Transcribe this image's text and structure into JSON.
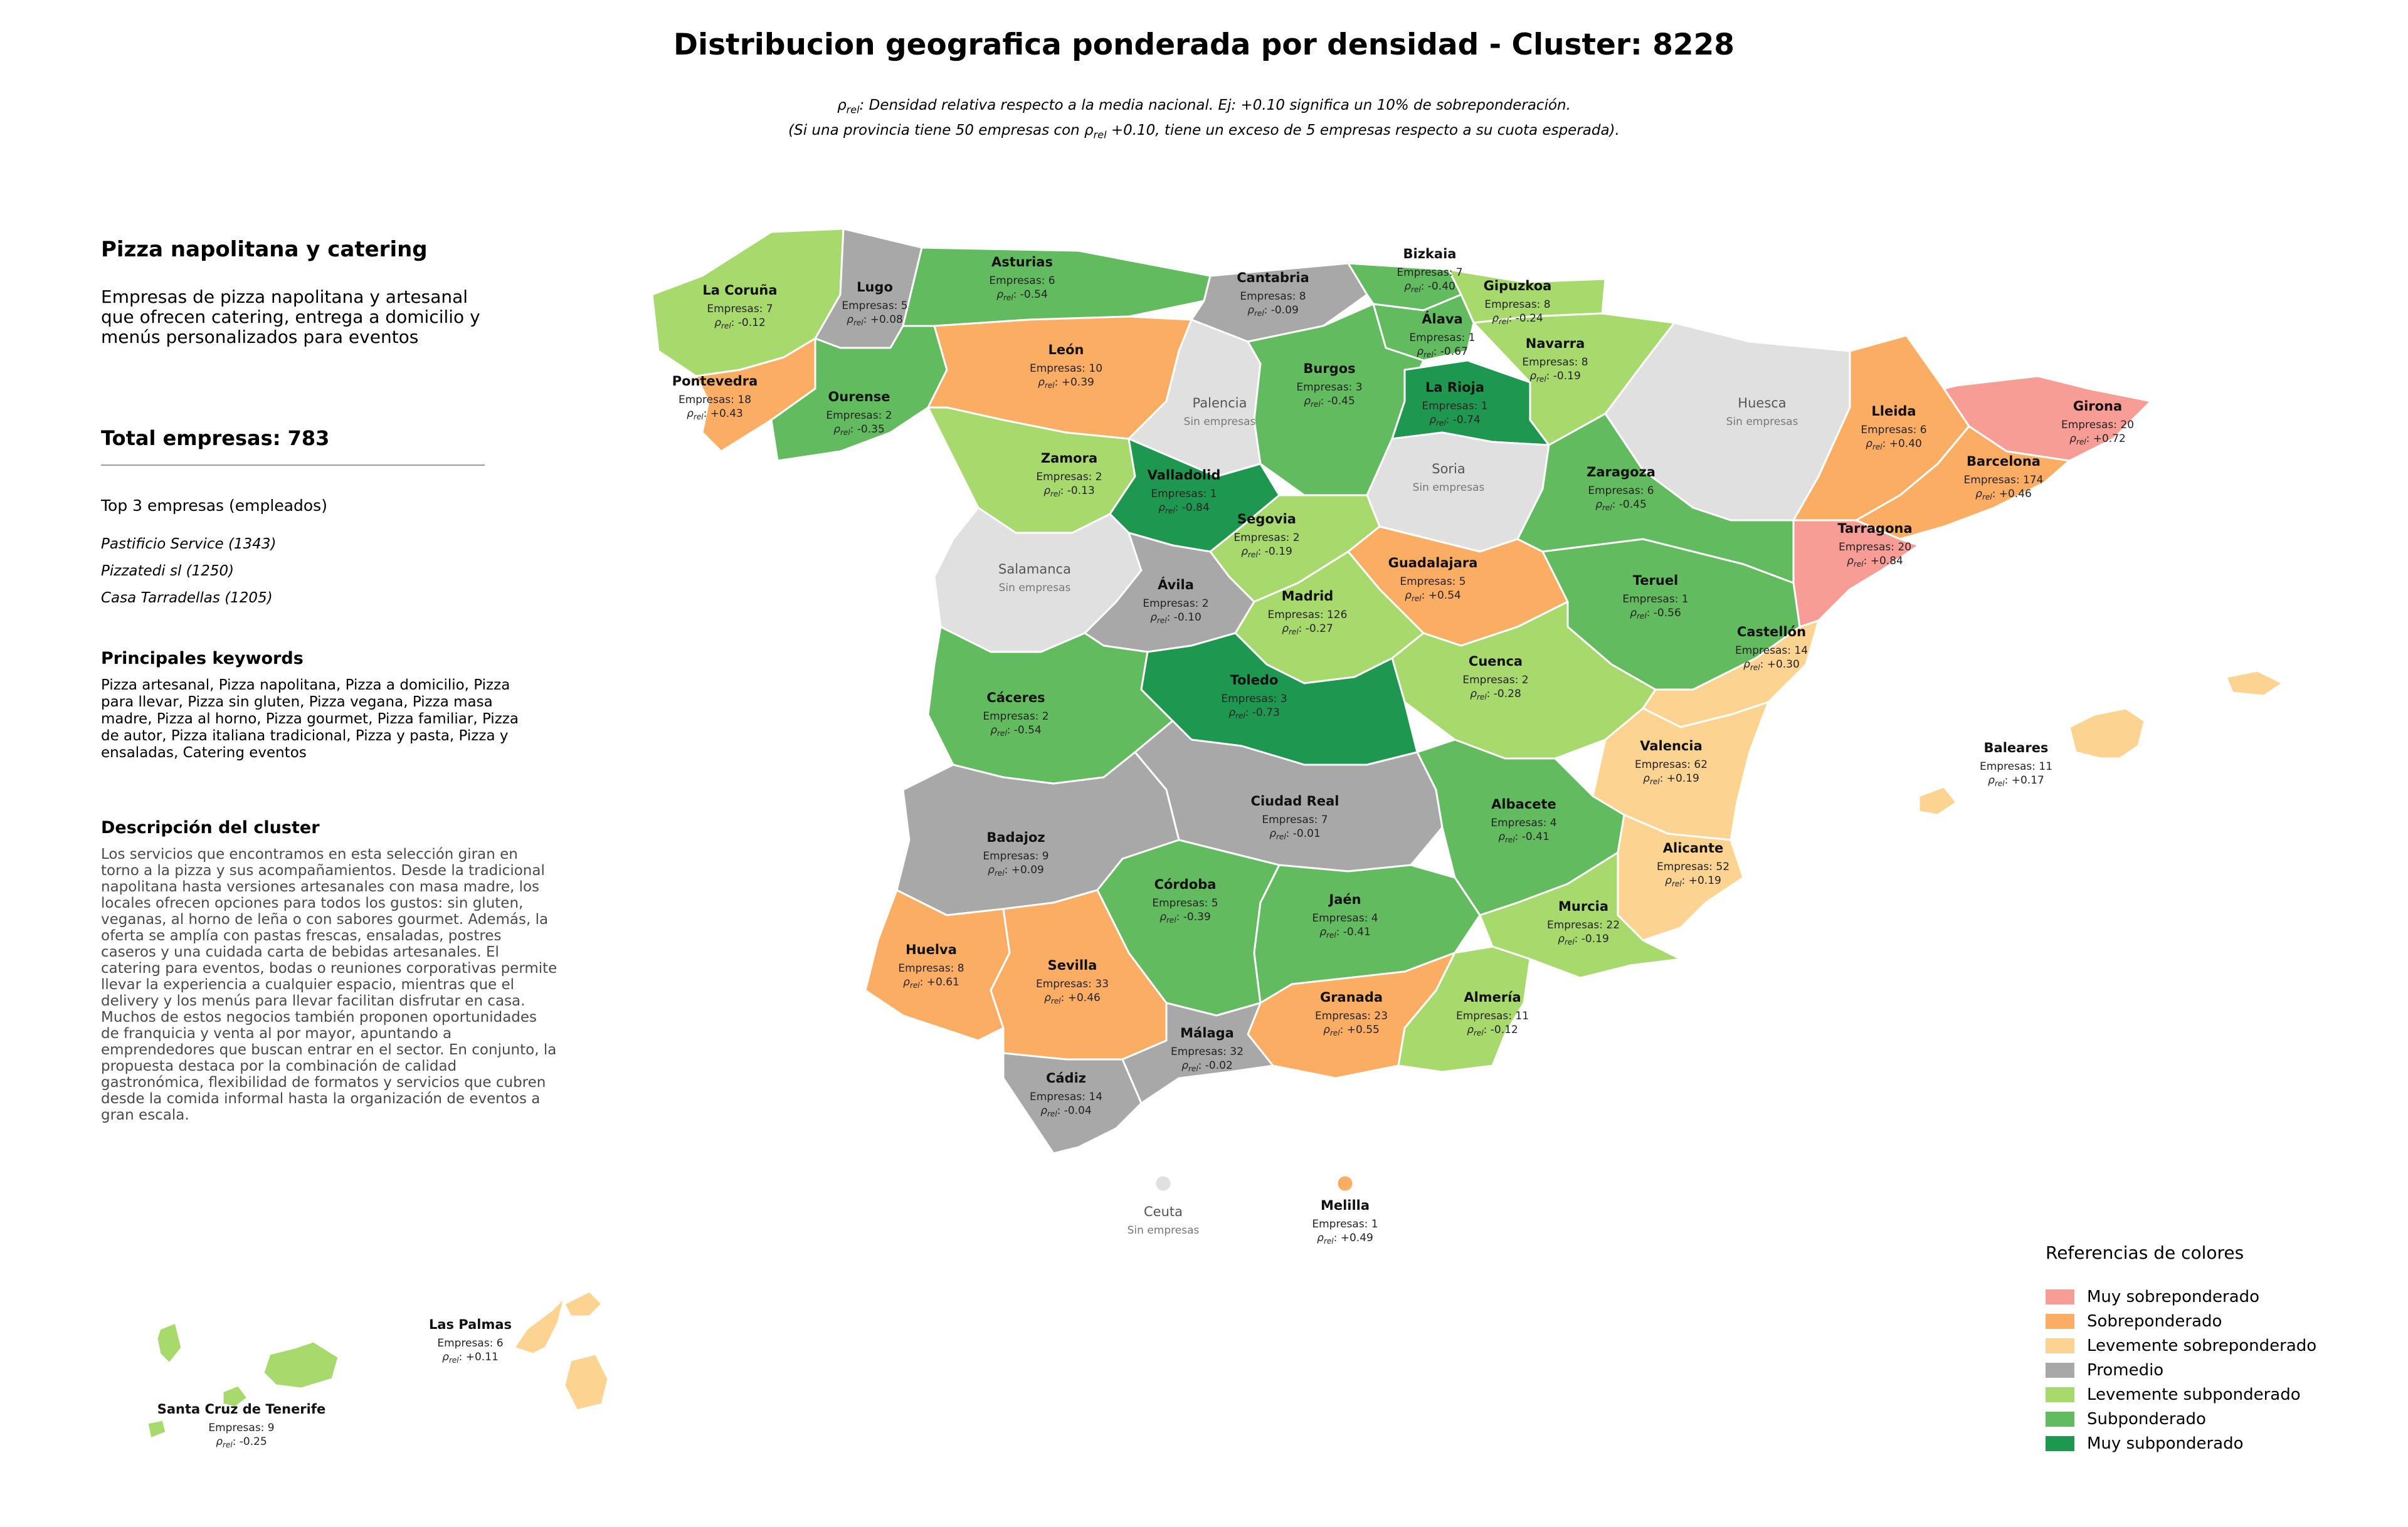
{
  "title": "Distribucion geografica ponderada por densidad - Cluster: 8228",
  "subtitle": {
    "line1_rho": "ρ",
    "line1_sub": "rel",
    "line1_rest": ": Densidad relativa respecto a la media nacional. Ej: +0.10 significa un 10% de sobreponderación.",
    "line2_pre": "(Si una provincia tiene 50 empresas con ρ",
    "line2_sub": "rel",
    "line2_rest": " +0.10, tiene un exceso de 5 empresas respecto a su cuota esperada)."
  },
  "cluster": {
    "name": "Pizza napolitana y catering",
    "description": "Empresas de pizza napolitana y artesanal que ofrecen catering, entrega a domicilio y menús personalizados para eventos",
    "total_label": "Total empresas: 783",
    "top3_title": "Top 3 empresas (empleados)",
    "top3": [
      "Pastificio Service (1343)",
      "Pizzatedi sl (1250)",
      "Casa Tarradellas (1205)"
    ],
    "keywords_title": "Principales keywords",
    "keywords": "Pizza artesanal, Pizza napolitana, Pizza a domicilio, Pizza para llevar, Pizza sin gluten, Pizza vegana, Pizza masa madre, Pizza al horno, Pizza gourmet, Pizza familiar, Pizza de autor, Pizza italiana tradicional, Pizza y pasta, Pizza y ensaladas, Catering eventos",
    "desc_title": "Descripción del cluster",
    "desc_text": "Los servicios que encontramos en esta selección giran en torno a la pizza y sus acompañamientos. Desde la tradicional napolitana hasta versiones artesanales con masa madre, los locales ofrecen opciones para todos los gustos: sin gluten, veganas, al horno de leña o con sabores gourmet. Además, la oferta se amplía con pastas frescas, ensaladas, postres caseros y una cuidada carta de bebidas artesanales. El catering para eventos, bodas o reuniones corporativas permite llevar la experiencia a cualquier espacio, mientras que el delivery y los menús para llevar facilitan disfrutar en casa. Muchos de estos negocios también proponen oportunidades de franquicia y venta al por mayor, apuntando a emprendedores que buscan entrar en el sector. En conjunto, la propuesta destaca por la combinación de calidad gastronómica, flexibilidad de formatos y servicios que cubren desde la comida informal hasta la organización de eventos a gran escala."
  },
  "colors": {
    "muy_sobre": "#f89d96",
    "sobre": "#fbae63",
    "lev_sobre": "#fdd391",
    "promedio": "#a8a8a8",
    "lev_sub": "#a8d96d",
    "sub": "#62bb5e",
    "muy_sub": "#1e9850",
    "sin": "#e0e0e0"
  },
  "legend": {
    "title": "Referencias de colores",
    "items": [
      {
        "label": "Muy sobreponderado",
        "color": "#f89d96"
      },
      {
        "label": "Sobreponderado",
        "color": "#fbae63"
      },
      {
        "label": "Levemente sobreponderado",
        "color": "#fdd391"
      },
      {
        "label": "Promedio",
        "color": "#a8a8a8"
      },
      {
        "label": "Levemente subponderado",
        "color": "#a8d96d"
      },
      {
        "label": "Subponderado",
        "color": "#62bb5e"
      },
      {
        "label": "Muy subponderado",
        "color": "#1e9850"
      }
    ]
  },
  "provinces": [
    {
      "name": "La Coruña",
      "info": "Empresas: 7",
      "rho": ": -0.12",
      "cat": "lev_sub"
    },
    {
      "name": "Lugo",
      "info": "Empresas: 5",
      "rho": ": +0.08",
      "cat": "promedio"
    },
    {
      "name": "Asturias",
      "info": "Empresas: 6",
      "rho": ": -0.54",
      "cat": "sub"
    },
    {
      "name": "Cantabria",
      "info": "Empresas: 8",
      "rho": ": -0.09",
      "cat": "promedio"
    },
    {
      "name": "Bizkaia",
      "info": "Empresas: 7",
      "rho": ": -0.40",
      "cat": "sub"
    },
    {
      "name": "Gipuzkoa",
      "info": "Empresas: 8",
      "rho": ": -0.24",
      "cat": "lev_sub"
    },
    {
      "name": "Álava",
      "info": "Empresas: 1",
      "rho": ": -0.67",
      "cat": "sub"
    },
    {
      "name": "Navarra",
      "info": "Empresas: 8",
      "rho": ": -0.19",
      "cat": "lev_sub"
    },
    {
      "name": "Pontevedra",
      "info": "Empresas: 18",
      "rho": ": +0.43",
      "cat": "sobre"
    },
    {
      "name": "Ourense",
      "info": "Empresas: 2",
      "rho": ": -0.35",
      "cat": "sub"
    },
    {
      "name": "León",
      "info": "Empresas: 10",
      "rho": ": +0.39",
      "cat": "sobre"
    },
    {
      "name": "Palencia",
      "info": "Sin empresas",
      "rho": "",
      "cat": "sin"
    },
    {
      "name": "Burgos",
      "info": "Empresas: 3",
      "rho": ": -0.45",
      "cat": "sub"
    },
    {
      "name": "La Rioja",
      "info": "Empresas: 1",
      "rho": ": -0.74",
      "cat": "muy_sub"
    },
    {
      "name": "Huesca",
      "info": "Sin empresas",
      "rho": "",
      "cat": "sin"
    },
    {
      "name": "Lleida",
      "info": "Empresas: 6",
      "rho": ": +0.40",
      "cat": "sobre"
    },
    {
      "name": "Girona",
      "info": "Empresas: 20",
      "rho": ": +0.72",
      "cat": "muy_sobre"
    },
    {
      "name": "Barcelona",
      "info": "Empresas: 174",
      "rho": ": +0.46",
      "cat": "sobre"
    },
    {
      "name": "Tarragona",
      "info": "Empresas: 20",
      "rho": ": +0.84",
      "cat": "muy_sobre"
    },
    {
      "name": "Zamora",
      "info": "Empresas: 2",
      "rho": ": -0.13",
      "cat": "lev_sub"
    },
    {
      "name": "Valladolid",
      "info": "Empresas: 1",
      "rho": ": -0.84",
      "cat": "muy_sub"
    },
    {
      "name": "Soria",
      "info": "Sin empresas",
      "rho": "",
      "cat": "sin"
    },
    {
      "name": "Zaragoza",
      "info": "Empresas: 6",
      "rho": ": -0.45",
      "cat": "sub"
    },
    {
      "name": "Salamanca",
      "info": "Sin empresas",
      "rho": "",
      "cat": "sin"
    },
    {
      "name": "Segovia",
      "info": "Empresas: 2",
      "rho": ": -0.19",
      "cat": "lev_sub"
    },
    {
      "name": "Guadalajara",
      "info": "Empresas: 5",
      "rho": ": +0.54",
      "cat": "sobre"
    },
    {
      "name": "Ávila",
      "info": "Empresas: 2",
      "rho": ": -0.10",
      "cat": "promedio"
    },
    {
      "name": "Madrid",
      "info": "Empresas: 126",
      "rho": ": -0.27",
      "cat": "lev_sub"
    },
    {
      "name": "Teruel",
      "info": "Empresas: 1",
      "rho": ": -0.56",
      "cat": "sub"
    },
    {
      "name": "Castellón",
      "info": "Empresas: 14",
      "rho": ": +0.30",
      "cat": "lev_sobre"
    },
    {
      "name": "Cuenca",
      "info": "Empresas: 2",
      "rho": ": -0.28",
      "cat": "lev_sub"
    },
    {
      "name": "Cáceres",
      "info": "Empresas: 2",
      "rho": ": -0.54",
      "cat": "sub"
    },
    {
      "name": "Toledo",
      "info": "Empresas: 3",
      "rho": ": -0.73",
      "cat": "muy_sub"
    },
    {
      "name": "Valencia",
      "info": "Empresas: 62",
      "rho": ": +0.19",
      "cat": "lev_sobre"
    },
    {
      "name": "Baleares",
      "info": "Empresas: 11",
      "rho": ": +0.17",
      "cat": "lev_sobre"
    },
    {
      "name": "Ciudad Real",
      "info": "Empresas: 7",
      "rho": ": -0.01",
      "cat": "promedio"
    },
    {
      "name": "Albacete",
      "info": "Empresas: 4",
      "rho": ": -0.41",
      "cat": "sub"
    },
    {
      "name": "Badajoz",
      "info": "Empresas: 9",
      "rho": ": +0.09",
      "cat": "promedio"
    },
    {
      "name": "Alicante",
      "info": "Empresas: 52",
      "rho": ": +0.19",
      "cat": "lev_sobre"
    },
    {
      "name": "Córdoba",
      "info": "Empresas: 5",
      "rho": ": -0.39",
      "cat": "sub"
    },
    {
      "name": "Jaén",
      "info": "Empresas: 4",
      "rho": ": -0.41",
      "cat": "sub"
    },
    {
      "name": "Murcia",
      "info": "Empresas: 22",
      "rho": ": -0.19",
      "cat": "lev_sub"
    },
    {
      "name": "Huelva",
      "info": "Empresas: 8",
      "rho": ": +0.61",
      "cat": "sobre"
    },
    {
      "name": "Sevilla",
      "info": "Empresas: 33",
      "rho": ": +0.46",
      "cat": "sobre"
    },
    {
      "name": "Granada",
      "info": "Empresas: 23",
      "rho": ": +0.55",
      "cat": "sobre"
    },
    {
      "name": "Almería",
      "info": "Empresas: 11",
      "rho": ": -0.12",
      "cat": "lev_sub"
    },
    {
      "name": "Málaga",
      "info": "Empresas: 32",
      "rho": ": -0.02",
      "cat": "promedio"
    },
    {
      "name": "Cádiz",
      "info": "Empresas: 14",
      "rho": ": -0.04",
      "cat": "promedio"
    },
    {
      "name": "Ceuta",
      "info": "Sin empresas",
      "rho": "",
      "cat": "sin"
    },
    {
      "name": "Melilla",
      "info": "Empresas: 1",
      "rho": ": +0.49",
      "cat": "sobre"
    },
    {
      "name": "Las Palmas",
      "info": "Empresas: 6",
      "rho": ": +0.11",
      "cat": "lev_sobre"
    },
    {
      "name": "Santa Cruz de Tenerife",
      "info": "Empresas: 9",
      "rho": ": -0.25",
      "cat": "lev_sub"
    }
  ]
}
